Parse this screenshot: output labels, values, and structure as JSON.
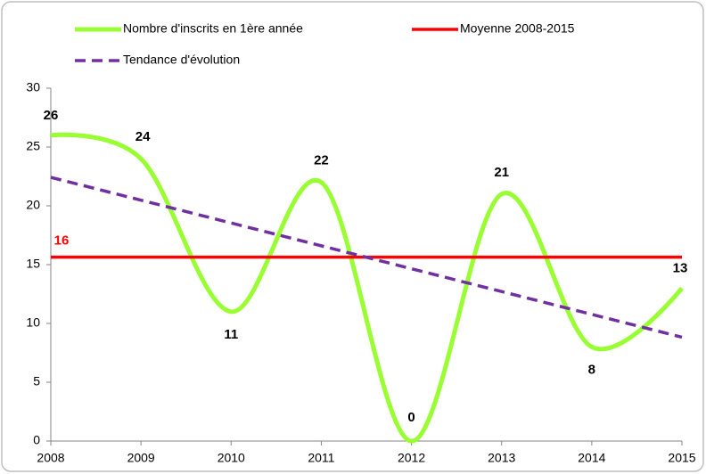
{
  "chart_data": {
    "type": "line",
    "x": [
      2008,
      2009,
      2010,
      2011,
      2012,
      2013,
      2014,
      2015
    ],
    "series": [
      {
        "name": "Nombre d'inscrits en 1ère année",
        "color": "#99ff33",
        "values": [
          26,
          24,
          11,
          22,
          0,
          21,
          8,
          13
        ],
        "smooth": true,
        "data_labels": true
      },
      {
        "name": "Moyenne 2008-2015",
        "color": "#ff0000",
        "values": [
          15.63,
          15.63,
          15.63,
          15.63,
          15.63,
          15.63,
          15.63,
          15.63
        ],
        "value_labels": [
          "16",
          null,
          null,
          null,
          null,
          null,
          null,
          null
        ]
      },
      {
        "name": "Tendance d'évolution",
        "color": "#7030a0",
        "dash": true,
        "values": [
          22.42,
          20.48,
          18.54,
          16.6,
          14.65,
          12.71,
          10.77,
          8.83
        ]
      }
    ],
    "xlim": [
      2008,
      2015
    ],
    "xticks": [
      2008,
      2009,
      2010,
      2011,
      2012,
      2013,
      2014,
      2015
    ],
    "ylim": [
      0,
      30
    ],
    "yticks": [
      0,
      5,
      10,
      15,
      20,
      25,
      30
    ],
    "grid": false,
    "legend": "top"
  }
}
